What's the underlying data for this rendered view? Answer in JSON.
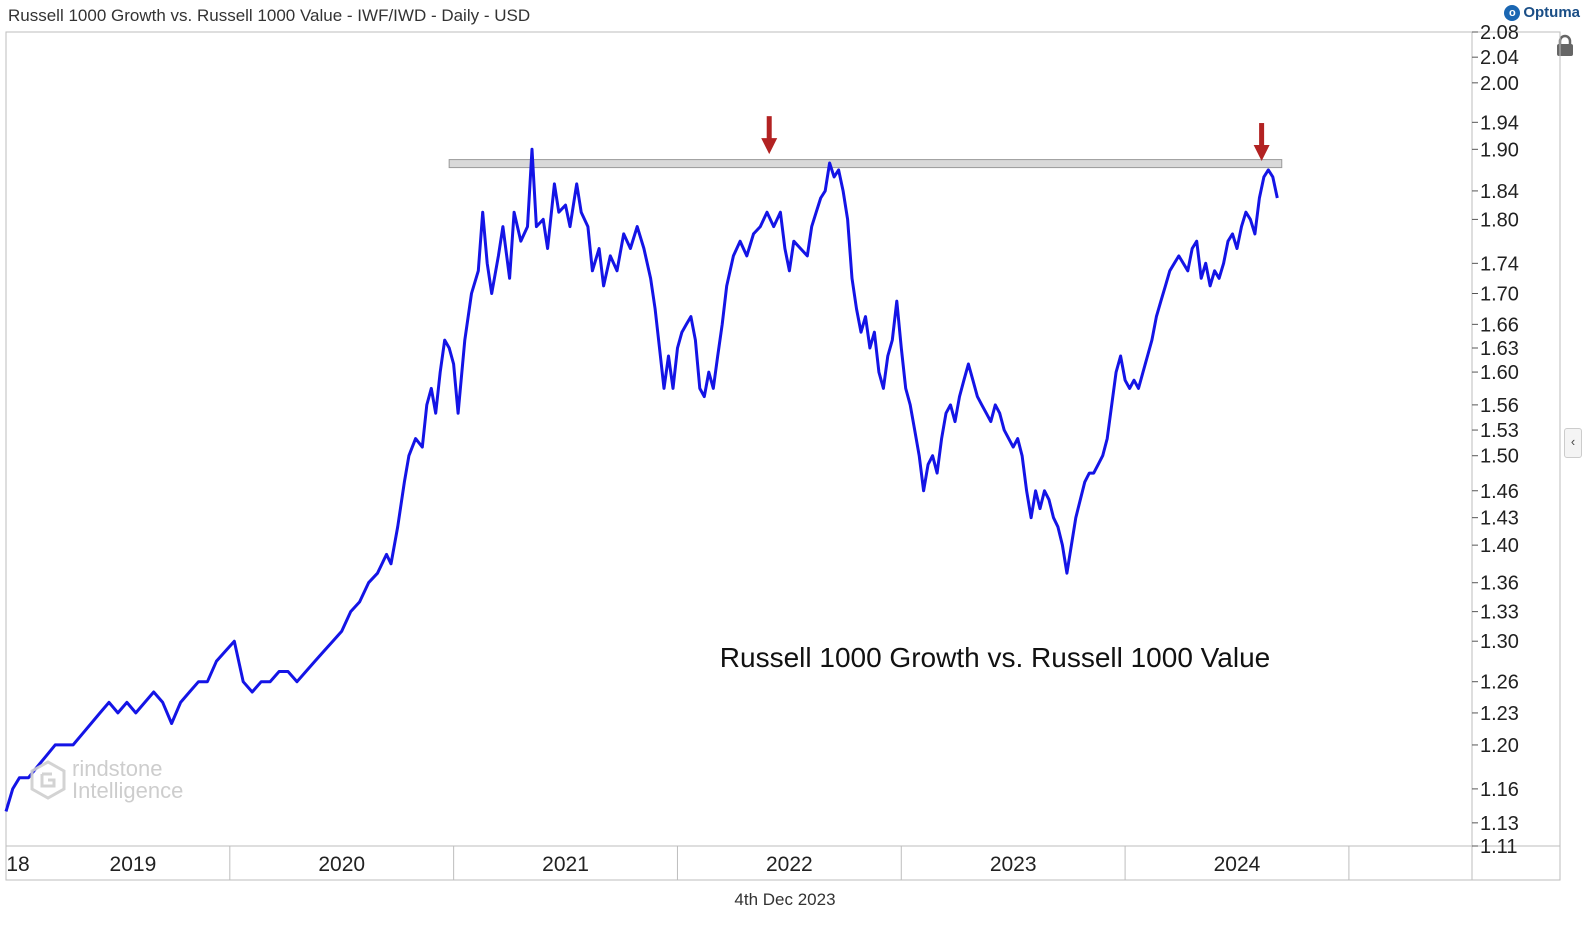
{
  "header": {
    "title": "Russell 1000 Growth vs. Russell 1000 Value - IWF/IWD - Daily - USD",
    "brand": "Optuma"
  },
  "footer": {
    "date": "4th Dec 2023"
  },
  "watermark": {
    "line1": "rindstone",
    "line2": "Intelligence"
  },
  "colors": {
    "series": "#1414e6",
    "arrow": "#b22222",
    "band": "#d9d9d9",
    "axis": "#999999"
  },
  "chart_data": {
    "type": "line",
    "title": "Russell 1000 Growth vs. Russell 1000 Value",
    "annotation": "Russell 1000 Growth vs. Russell 1000 Value",
    "xlabel": "",
    "ylabel": "",
    "scale": "log",
    "ylim": [
      1.11,
      2.08
    ],
    "xlim": [
      2018.0,
      2024.55
    ],
    "y_ticks": [
      "2.08",
      "2.04",
      "2.00",
      "1.94",
      "1.90",
      "1.84",
      "1.80",
      "1.74",
      "1.70",
      "1.66",
      "1.63",
      "1.60",
      "1.56",
      "1.53",
      "1.50",
      "1.46",
      "1.43",
      "1.40",
      "1.36",
      "1.33",
      "1.30",
      "1.26",
      "1.23",
      "1.20",
      "1.16",
      "1.13",
      "1.11"
    ],
    "x_labels": [
      {
        "label": "18",
        "x": 2018.0
      },
      {
        "label": "2019",
        "x": 2019.0
      },
      {
        "label": "2020",
        "x": 2020.0
      },
      {
        "label": "2021",
        "x": 2021.0
      },
      {
        "label": "2022",
        "x": 2022.0
      },
      {
        "label": "2023",
        "x": 2023.0
      },
      {
        "label": "2024",
        "x": 2024.0
      }
    ],
    "resistance_band": {
      "x_start": 2019.98,
      "x_end": 2023.7,
      "y_low": 1.875,
      "y_high": 1.885
    },
    "arrows": [
      {
        "x": 2021.41,
        "y": 1.89
      },
      {
        "x": 2023.61,
        "y": 1.88
      }
    ],
    "series": [
      {
        "name": "IWF/IWD",
        "points": [
          [
            2018.0,
            1.14
          ],
          [
            2018.03,
            1.16
          ],
          [
            2018.06,
            1.17
          ],
          [
            2018.1,
            1.17
          ],
          [
            2018.14,
            1.18
          ],
          [
            2018.18,
            1.19
          ],
          [
            2018.22,
            1.2
          ],
          [
            2018.27,
            1.2
          ],
          [
            2018.3,
            1.2
          ],
          [
            2018.34,
            1.21
          ],
          [
            2018.38,
            1.22
          ],
          [
            2018.42,
            1.23
          ],
          [
            2018.46,
            1.24
          ],
          [
            2018.5,
            1.23
          ],
          [
            2018.54,
            1.24
          ],
          [
            2018.58,
            1.23
          ],
          [
            2018.62,
            1.24
          ],
          [
            2018.66,
            1.25
          ],
          [
            2018.7,
            1.24
          ],
          [
            2018.74,
            1.22
          ],
          [
            2018.78,
            1.24
          ],
          [
            2018.82,
            1.25
          ],
          [
            2018.86,
            1.26
          ],
          [
            2018.9,
            1.26
          ],
          [
            2018.94,
            1.28
          ],
          [
            2018.98,
            1.29
          ],
          [
            2019.02,
            1.3
          ],
          [
            2019.06,
            1.26
          ],
          [
            2019.1,
            1.25
          ],
          [
            2019.14,
            1.26
          ],
          [
            2019.18,
            1.26
          ],
          [
            2019.22,
            1.27
          ],
          [
            2019.26,
            1.27
          ],
          [
            2019.3,
            1.26
          ],
          [
            2019.34,
            1.27
          ],
          [
            2019.38,
            1.28
          ],
          [
            2019.42,
            1.29
          ],
          [
            2019.46,
            1.3
          ],
          [
            2019.5,
            1.31
          ],
          [
            2019.54,
            1.33
          ],
          [
            2019.58,
            1.34
          ],
          [
            2019.62,
            1.36
          ],
          [
            2019.66,
            1.37
          ],
          [
            2019.7,
            1.39
          ],
          [
            2019.72,
            1.38
          ],
          [
            2019.75,
            1.42
          ],
          [
            2019.78,
            1.47
          ],
          [
            2019.8,
            1.5
          ],
          [
            2019.83,
            1.52
          ],
          [
            2019.86,
            1.51
          ],
          [
            2019.88,
            1.56
          ],
          [
            2019.9,
            1.58
          ],
          [
            2019.92,
            1.55
          ],
          [
            2019.94,
            1.6
          ],
          [
            2019.96,
            1.64
          ],
          [
            2019.98,
            1.63
          ],
          [
            2020.0,
            1.61
          ],
          [
            2020.02,
            1.55
          ],
          [
            2020.05,
            1.64
          ],
          [
            2020.08,
            1.7
          ],
          [
            2020.11,
            1.73
          ],
          [
            2020.13,
            1.81
          ],
          [
            2020.15,
            1.74
          ],
          [
            2020.17,
            1.7
          ],
          [
            2020.2,
            1.75
          ],
          [
            2020.22,
            1.79
          ],
          [
            2020.25,
            1.72
          ],
          [
            2020.27,
            1.81
          ],
          [
            2020.3,
            1.77
          ],
          [
            2020.33,
            1.79
          ],
          [
            2020.35,
            1.9
          ],
          [
            2020.37,
            1.79
          ],
          [
            2020.4,
            1.8
          ],
          [
            2020.42,
            1.76
          ],
          [
            2020.45,
            1.85
          ],
          [
            2020.47,
            1.81
          ],
          [
            2020.5,
            1.82
          ],
          [
            2020.52,
            1.79
          ],
          [
            2020.55,
            1.85
          ],
          [
            2020.57,
            1.81
          ],
          [
            2020.6,
            1.79
          ],
          [
            2020.62,
            1.73
          ],
          [
            2020.65,
            1.76
          ],
          [
            2020.67,
            1.71
          ],
          [
            2020.7,
            1.75
          ],
          [
            2020.73,
            1.73
          ],
          [
            2020.76,
            1.78
          ],
          [
            2020.79,
            1.76
          ],
          [
            2020.82,
            1.79
          ],
          [
            2020.85,
            1.76
          ],
          [
            2020.88,
            1.72
          ],
          [
            2020.9,
            1.68
          ],
          [
            2020.92,
            1.63
          ],
          [
            2020.94,
            1.58
          ],
          [
            2020.96,
            1.62
          ],
          [
            2020.98,
            1.58
          ],
          [
            2021.0,
            1.63
          ],
          [
            2021.02,
            1.65
          ],
          [
            2021.04,
            1.66
          ],
          [
            2021.06,
            1.67
          ],
          [
            2021.08,
            1.64
          ],
          [
            2021.1,
            1.58
          ],
          [
            2021.12,
            1.57
          ],
          [
            2021.14,
            1.6
          ],
          [
            2021.16,
            1.58
          ],
          [
            2021.18,
            1.62
          ],
          [
            2021.2,
            1.66
          ],
          [
            2021.22,
            1.71
          ],
          [
            2021.25,
            1.75
          ],
          [
            2021.28,
            1.77
          ],
          [
            2021.31,
            1.75
          ],
          [
            2021.34,
            1.78
          ],
          [
            2021.37,
            1.79
          ],
          [
            2021.4,
            1.81
          ],
          [
            2021.43,
            1.79
          ],
          [
            2021.46,
            1.81
          ],
          [
            2021.48,
            1.76
          ],
          [
            2021.5,
            1.73
          ],
          [
            2021.52,
            1.77
          ],
          [
            2021.55,
            1.76
          ],
          [
            2021.58,
            1.75
          ],
          [
            2021.6,
            1.79
          ],
          [
            2021.62,
            1.81
          ],
          [
            2021.64,
            1.83
          ],
          [
            2021.66,
            1.84
          ],
          [
            2021.68,
            1.88
          ],
          [
            2021.7,
            1.86
          ],
          [
            2021.72,
            1.87
          ],
          [
            2021.74,
            1.84
          ],
          [
            2021.76,
            1.8
          ],
          [
            2021.78,
            1.72
          ],
          [
            2021.8,
            1.68
          ],
          [
            2021.82,
            1.65
          ],
          [
            2021.84,
            1.67
          ],
          [
            2021.86,
            1.63
          ],
          [
            2021.88,
            1.65
          ],
          [
            2021.9,
            1.6
          ],
          [
            2021.92,
            1.58
          ],
          [
            2021.94,
            1.62
          ],
          [
            2021.96,
            1.64
          ],
          [
            2021.98,
            1.69
          ],
          [
            2022.0,
            1.63
          ],
          [
            2022.02,
            1.58
          ],
          [
            2022.04,
            1.56
          ],
          [
            2022.06,
            1.53
          ],
          [
            2022.08,
            1.5
          ],
          [
            2022.1,
            1.46
          ],
          [
            2022.12,
            1.49
          ],
          [
            2022.14,
            1.5
          ],
          [
            2022.16,
            1.48
          ],
          [
            2022.18,
            1.52
          ],
          [
            2022.2,
            1.55
          ],
          [
            2022.22,
            1.56
          ],
          [
            2022.24,
            1.54
          ],
          [
            2022.26,
            1.57
          ],
          [
            2022.28,
            1.59
          ],
          [
            2022.3,
            1.61
          ],
          [
            2022.32,
            1.59
          ],
          [
            2022.34,
            1.57
          ],
          [
            2022.36,
            1.56
          ],
          [
            2022.38,
            1.55
          ],
          [
            2022.4,
            1.54
          ],
          [
            2022.42,
            1.56
          ],
          [
            2022.44,
            1.55
          ],
          [
            2022.46,
            1.53
          ],
          [
            2022.48,
            1.52
          ],
          [
            2022.5,
            1.51
          ],
          [
            2022.52,
            1.52
          ],
          [
            2022.54,
            1.5
          ],
          [
            2022.56,
            1.46
          ],
          [
            2022.58,
            1.43
          ],
          [
            2022.6,
            1.46
          ],
          [
            2022.62,
            1.44
          ],
          [
            2022.64,
            1.46
          ],
          [
            2022.66,
            1.45
          ],
          [
            2022.68,
            1.43
          ],
          [
            2022.7,
            1.42
          ],
          [
            2022.72,
            1.4
          ],
          [
            2022.74,
            1.37
          ],
          [
            2022.76,
            1.4
          ],
          [
            2022.78,
            1.43
          ],
          [
            2022.8,
            1.45
          ],
          [
            2022.82,
            1.47
          ],
          [
            2022.84,
            1.48
          ],
          [
            2022.86,
            1.48
          ],
          [
            2022.88,
            1.49
          ],
          [
            2022.9,
            1.5
          ],
          [
            2022.92,
            1.52
          ],
          [
            2022.94,
            1.56
          ],
          [
            2022.96,
            1.6
          ],
          [
            2022.98,
            1.62
          ],
          [
            2023.0,
            1.59
          ],
          [
            2023.02,
            1.58
          ],
          [
            2023.04,
            1.59
          ],
          [
            2023.06,
            1.58
          ],
          [
            2023.08,
            1.6
          ],
          [
            2023.1,
            1.62
          ],
          [
            2023.12,
            1.64
          ],
          [
            2023.14,
            1.67
          ],
          [
            2023.16,
            1.69
          ],
          [
            2023.18,
            1.71
          ],
          [
            2023.2,
            1.73
          ],
          [
            2023.22,
            1.74
          ],
          [
            2023.24,
            1.75
          ],
          [
            2023.26,
            1.74
          ],
          [
            2023.28,
            1.73
          ],
          [
            2023.3,
            1.76
          ],
          [
            2023.32,
            1.77
          ],
          [
            2023.34,
            1.72
          ],
          [
            2023.36,
            1.74
          ],
          [
            2023.38,
            1.71
          ],
          [
            2023.4,
            1.73
          ],
          [
            2023.42,
            1.72
          ],
          [
            2023.44,
            1.74
          ],
          [
            2023.46,
            1.77
          ],
          [
            2023.48,
            1.78
          ],
          [
            2023.5,
            1.76
          ],
          [
            2023.52,
            1.79
          ],
          [
            2023.54,
            1.81
          ],
          [
            2023.56,
            1.8
          ],
          [
            2023.58,
            1.78
          ],
          [
            2023.6,
            1.83
          ],
          [
            2023.62,
            1.86
          ],
          [
            2023.64,
            1.87
          ],
          [
            2023.66,
            1.86
          ],
          [
            2023.68,
            1.83
          ]
        ]
      }
    ]
  }
}
